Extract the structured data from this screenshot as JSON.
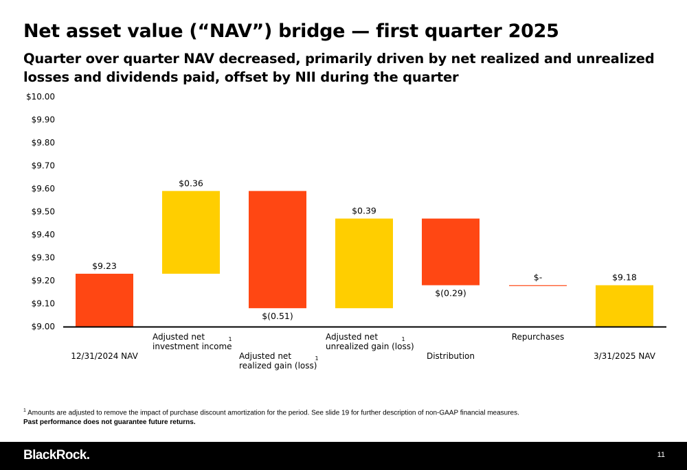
{
  "slide": {
    "title": "Net asset value (“NAV”) bridge — first quarter 2025",
    "subtitle": "Quarter over quarter NAV decreased, primarily driven by net realized and unrealized losses and dividends paid, offset by NII during the quarter",
    "footnote_marker": "1",
    "footnote_text": "Amounts are adjusted to remove the impact of purchase discount amortization for the period. See slide 19 for further description of non-GAAP financial measures.",
    "disclaimer": "Past performance does not guarantee future returns.",
    "brand": "BlackRock.",
    "page_number": "11"
  },
  "chart_data": {
    "type": "bar",
    "subtype": "waterfall",
    "ylim": [
      9.0,
      10.0
    ],
    "y_ticks": [
      "$9.00",
      "$9.10",
      "$9.20",
      "$9.30",
      "$9.40",
      "$9.50",
      "$9.60",
      "$9.70",
      "$9.80",
      "$9.90",
      "$10.00"
    ],
    "colors": {
      "decrease": "#FF4713",
      "increase": "#FFCE00",
      "axis": "#000000"
    },
    "bars": [
      {
        "category": [
          "12/31/2024 NAV"
        ],
        "footnote": "",
        "label": "$9.23",
        "start": 9.0,
        "end": 9.23,
        "color": "decrease",
        "label_pos": "above"
      },
      {
        "category": [
          "Adjusted net",
          "investment income"
        ],
        "footnote": "1",
        "label": "$0.36",
        "start": 9.23,
        "end": 9.59,
        "color": "increase",
        "label_pos": "above"
      },
      {
        "category": [
          "Adjusted net",
          "realized gain (loss)"
        ],
        "footnote": "1",
        "label": "$(0.51)",
        "start": 9.59,
        "end": 9.08,
        "color": "decrease",
        "label_pos": "below"
      },
      {
        "category": [
          "Adjusted net",
          "unrealized gain (loss)"
        ],
        "footnote": "1",
        "label": "$0.39",
        "start": 9.08,
        "end": 9.47,
        "color": "increase",
        "label_pos": "above"
      },
      {
        "category": [
          "Distribution"
        ],
        "footnote": "",
        "label": "$(0.29)",
        "start": 9.47,
        "end": 9.18,
        "color": "decrease",
        "label_pos": "below"
      },
      {
        "category": [
          "Repurchases"
        ],
        "footnote": "",
        "label": "$-",
        "start": 9.18,
        "end": 9.18,
        "color": "decrease",
        "label_pos": "above"
      },
      {
        "category": [
          "3/31/2025 NAV"
        ],
        "footnote": "",
        "label": "$9.18",
        "start": 9.0,
        "end": 9.18,
        "color": "increase",
        "label_pos": "above"
      }
    ]
  }
}
